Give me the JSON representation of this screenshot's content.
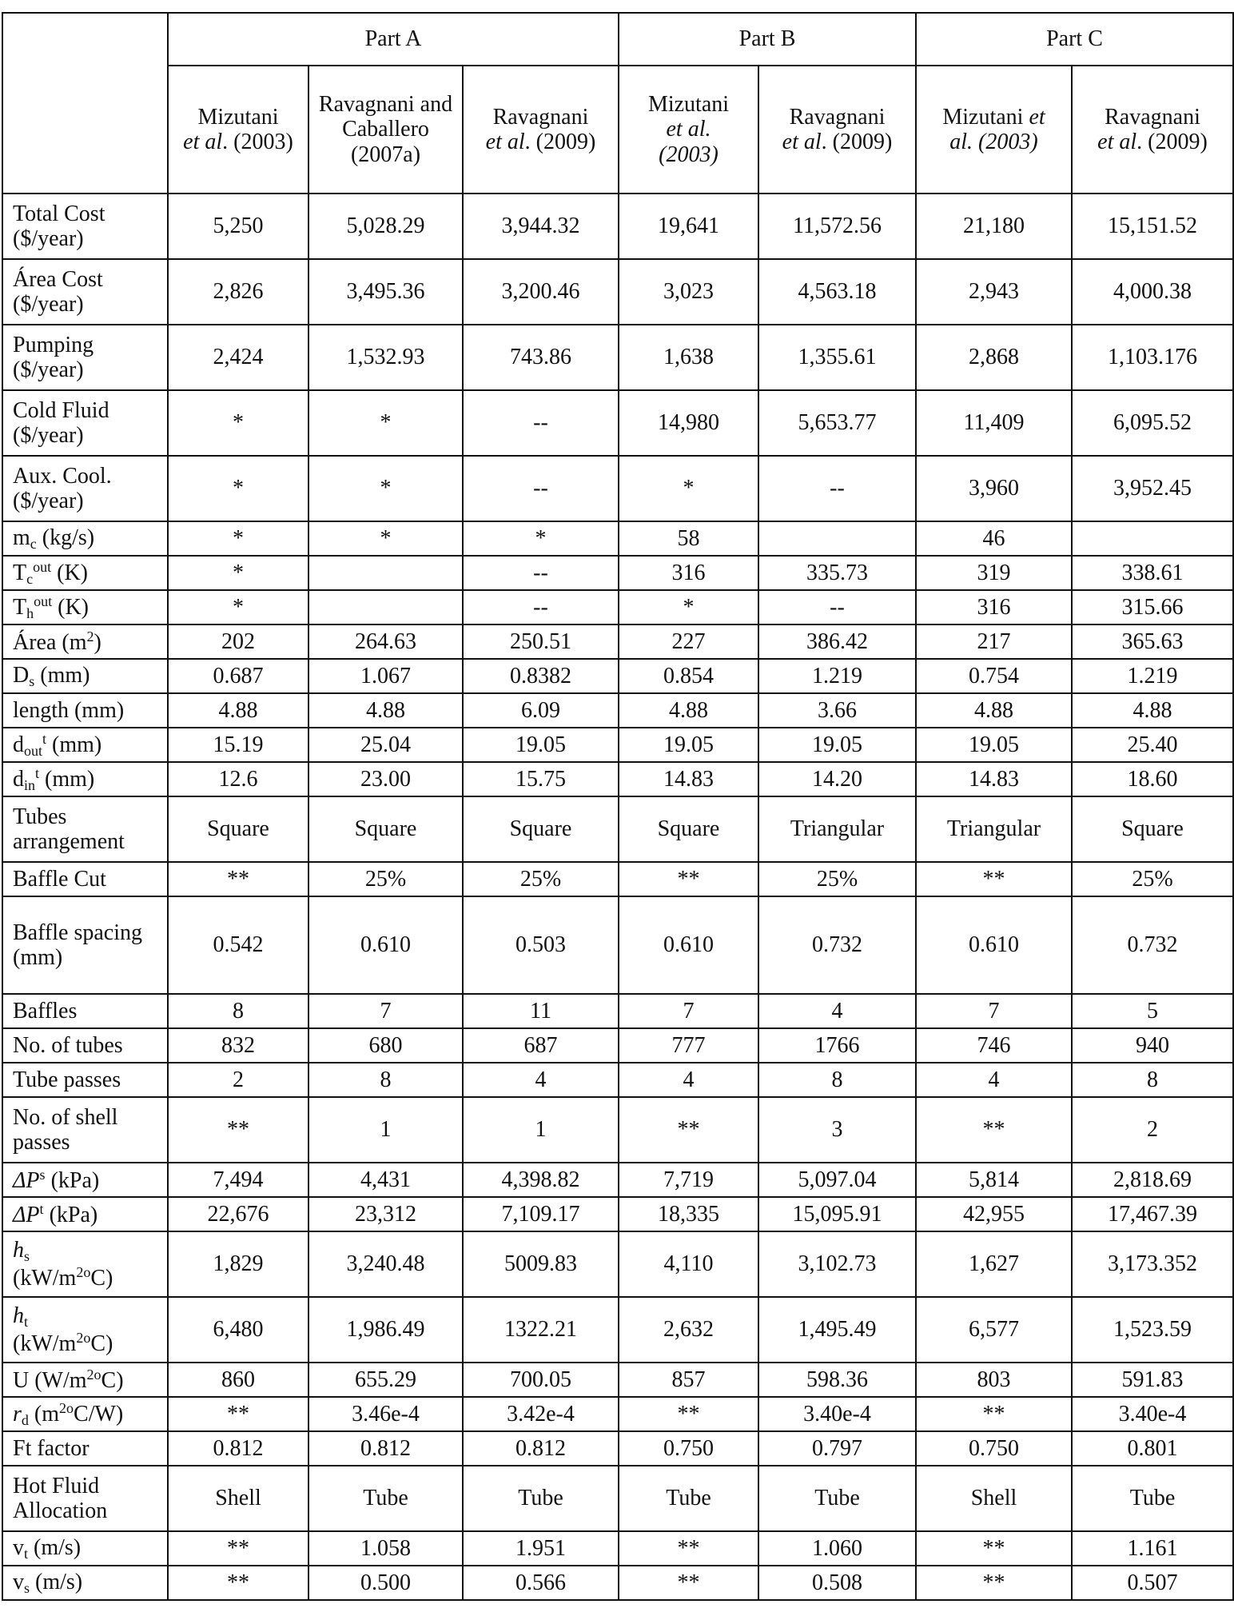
{
  "parts": [
    "Part A",
    "Part B",
    "Part C"
  ],
  "columns": [
    [
      {
        "t": "Mizutani"
      },
      {
        "t": "\n"
      },
      {
        "t": "et al",
        "s": "i"
      },
      {
        "t": ". (2003)"
      }
    ],
    [
      {
        "t": "Ravagnani and Caballero (2007a)"
      }
    ],
    [
      {
        "t": "Ravagnani"
      },
      {
        "t": "\n"
      },
      {
        "t": "et al",
        "s": "i"
      },
      {
        "t": ". (2009)"
      }
    ],
    [
      {
        "t": "Mizutani"
      },
      {
        "t": "\n"
      },
      {
        "t": "et al.",
        "s": "i"
      },
      {
        "t": "\n"
      },
      {
        "t": "(2003)",
        "s": "i"
      }
    ],
    [
      {
        "t": "Ravagnani"
      },
      {
        "t": "\n"
      },
      {
        "t": "et al",
        "s": "i"
      },
      {
        "t": ". (2009)"
      }
    ],
    [
      {
        "t": "Mizutani "
      },
      {
        "t": "et",
        "s": "i"
      },
      {
        "t": "\n"
      },
      {
        "t": "al. (2003)",
        "s": "i"
      }
    ],
    [
      {
        "t": "Ravagnani"
      },
      {
        "t": "\n"
      },
      {
        "t": "et al",
        "s": "i"
      },
      {
        "t": ". (2009)"
      }
    ]
  ],
  "rows": [
    {
      "h": 2,
      "label": [
        {
          "t": "Total Cost ($/year)"
        }
      ],
      "values": [
        "5,250",
        "5,028.29",
        "3,944.32",
        "19,641",
        "11,572.56",
        "21,180",
        "15,151.52"
      ]
    },
    {
      "h": 2,
      "label": [
        {
          "t": "Área Cost ($/year)"
        }
      ],
      "values": [
        "2,826",
        "3,495.36",
        "3,200.46",
        "3,023",
        "4,563.18",
        "2,943",
        "4,000.38"
      ]
    },
    {
      "h": 2,
      "label": [
        {
          "t": "Pumping ($/year)"
        }
      ],
      "values": [
        "2,424",
        "1,532.93",
        "743.86",
        "1,638",
        "1,355.61",
        "2,868",
        "1,103.176"
      ]
    },
    {
      "h": 2,
      "label": [
        {
          "t": "Cold Fluid ($/year)"
        }
      ],
      "values": [
        "*",
        "*",
        "--",
        "14,980",
        "5,653.77",
        "11,409",
        "6,095.52"
      ]
    },
    {
      "h": 2,
      "label": [
        {
          "t": "Aux. Cool. ($/year)"
        }
      ],
      "values": [
        "*",
        "*",
        "--",
        "*",
        "--",
        "3,960",
        "3,952.45"
      ]
    },
    {
      "h": 1,
      "label": [
        {
          "t": "m"
        },
        {
          "t": "c",
          "s": "sub"
        },
        {
          "t": " (kg/s)"
        }
      ],
      "values": [
        "*",
        "*",
        "*",
        "58",
        "",
        "46",
        ""
      ]
    },
    {
      "h": 1,
      "label": [
        {
          "t": "T"
        },
        {
          "t": "c",
          "s": "sub"
        },
        {
          "t": "out",
          "s": "sup"
        },
        {
          "t": " (K)"
        }
      ],
      "values": [
        "*",
        "",
        "--",
        "316",
        "335.73",
        "319",
        "338.61"
      ]
    },
    {
      "h": 1,
      "label": [
        {
          "t": "T"
        },
        {
          "t": "h",
          "s": "sub"
        },
        {
          "t": "out",
          "s": "sup"
        },
        {
          "t": " (K)"
        }
      ],
      "values": [
        "*",
        "",
        "--",
        "*",
        "--",
        "316",
        "315.66"
      ]
    },
    {
      "h": 1,
      "label": [
        {
          "t": "Área (m"
        },
        {
          "t": "2",
          "s": "sup"
        },
        {
          "t": ")"
        }
      ],
      "values": [
        "202",
        "264.63",
        "250.51",
        "227",
        "386.42",
        "217",
        "365.63"
      ]
    },
    {
      "h": 1,
      "label": [
        {
          "t": "D"
        },
        {
          "t": "s",
          "s": "sub"
        },
        {
          "t": " (mm)"
        }
      ],
      "values": [
        "0.687",
        "1.067",
        "0.8382",
        "0.854",
        "1.219",
        "0.754",
        "1.219"
      ]
    },
    {
      "h": 1,
      "label": [
        {
          "t": "length (mm)"
        }
      ],
      "values": [
        "4.88",
        "4.88",
        "6.09",
        "4.88",
        "3.66",
        "4.88",
        "4.88"
      ]
    },
    {
      "h": 1,
      "label": [
        {
          "t": "d"
        },
        {
          "t": "out",
          "s": "sub"
        },
        {
          "t": "t",
          "s": "sup"
        },
        {
          "t": " (mm)"
        }
      ],
      "values": [
        "15.19",
        "25.04",
        "19.05",
        "19.05",
        "19.05",
        "19.05",
        "25.40"
      ]
    },
    {
      "h": 1,
      "label": [
        {
          "t": "d"
        },
        {
          "t": "in",
          "s": "sub"
        },
        {
          "t": "t",
          "s": "sup"
        },
        {
          "t": " (mm)"
        }
      ],
      "values": [
        "12.6",
        "23.00",
        "15.75",
        "14.83",
        "14.20",
        "14.83",
        "18.60"
      ]
    },
    {
      "h": 2,
      "label": [
        {
          "t": "Tubes arrangement"
        }
      ],
      "values": [
        "Square",
        "Square",
        "Square",
        "Square",
        "Triangular",
        "Triangular",
        "Square"
      ]
    },
    {
      "h": 1,
      "label": [
        {
          "t": "Baffle Cut"
        }
      ],
      "values": [
        "**",
        "25%",
        "25%",
        "**",
        "25%",
        "**",
        "25%"
      ]
    },
    {
      "h": 3,
      "label": [
        {
          "t": "Baffle spacing (mm)"
        }
      ],
      "values": [
        "0.542",
        "0.610",
        "0.503",
        "0.610",
        "0.732",
        "0.610",
        "0.732"
      ]
    },
    {
      "h": 1,
      "label": [
        {
          "t": "Baffles"
        }
      ],
      "values": [
        "8",
        "7",
        "11",
        "7",
        "4",
        "7",
        "5"
      ]
    },
    {
      "h": 1,
      "label": [
        {
          "t": "No. of tubes"
        }
      ],
      "values": [
        "832",
        "680",
        "687",
        "777",
        "1766",
        "746",
        "940"
      ]
    },
    {
      "h": 1,
      "label": [
        {
          "t": "Tube passes"
        }
      ],
      "values": [
        "2",
        "8",
        "4",
        "4",
        "8",
        "4",
        "8"
      ]
    },
    {
      "h": 2,
      "label": [
        {
          "t": "No. of shell passes"
        }
      ],
      "values": [
        "**",
        "1",
        "1",
        "**",
        "3",
        "**",
        "2"
      ]
    },
    {
      "h": 1,
      "label": [
        {
          "t": "ΔP",
          "s": "i"
        },
        {
          "t": "s",
          "s": "sup"
        },
        {
          "t": " (kPa)"
        }
      ],
      "values": [
        "7,494",
        "4,431",
        "4,398.82",
        "7,719",
        "5,097.04",
        "5,814",
        "2,818.69"
      ]
    },
    {
      "h": 1,
      "label": [
        {
          "t": "ΔP",
          "s": "i"
        },
        {
          "t": "t",
          "s": "sup"
        },
        {
          "t": " (kPa)"
        }
      ],
      "values": [
        "22,676",
        "23,312",
        "7,109.17",
        "18,335",
        "15,095.91",
        "42,955",
        "17,467.39"
      ]
    },
    {
      "h": 2,
      "label": [
        {
          "t": "h",
          "s": "i"
        },
        {
          "t": "s",
          "s": "sub"
        },
        {
          "t": "\n"
        },
        {
          "t": "(kW/m"
        },
        {
          "t": "2o",
          "s": "sup"
        },
        {
          "t": "C)"
        }
      ],
      "values": [
        "1,829",
        "3,240.48",
        "5009.83",
        "4,110",
        "3,102.73",
        "1,627",
        "3,173.352"
      ]
    },
    {
      "h": 2,
      "label": [
        {
          "t": "h",
          "s": "i"
        },
        {
          "t": "t",
          "s": "sub"
        },
        {
          "t": "\n"
        },
        {
          "t": "(kW/m"
        },
        {
          "t": "2o",
          "s": "sup"
        },
        {
          "t": "C)"
        }
      ],
      "values": [
        "6,480",
        "1,986.49",
        "1322.21",
        "2,632",
        "1,495.49",
        "6,577",
        "1,523.59"
      ]
    },
    {
      "h": 1,
      "label": [
        {
          "t": "U (W/m"
        },
        {
          "t": "2o",
          "s": "sup"
        },
        {
          "t": "C)"
        }
      ],
      "values": [
        "860",
        "655.29",
        "700.05",
        "857",
        "598.36",
        "803",
        "591.83"
      ]
    },
    {
      "h": 1,
      "label": [
        {
          "t": "r",
          "s": "i"
        },
        {
          "t": "d",
          "s": "sub"
        },
        {
          "t": " (m"
        },
        {
          "t": "2o",
          "s": "sup"
        },
        {
          "t": "C/W)"
        }
      ],
      "values": [
        "**",
        "3.46e-4",
        "3.42e-4",
        "**",
        "3.40e-4",
        "**",
        "3.40e-4"
      ]
    },
    {
      "h": 1,
      "label": [
        {
          "t": "Ft factor"
        }
      ],
      "values": [
        "0.812",
        "0.812",
        "0.812",
        "0.750",
        "0.797",
        "0.750",
        "0.801"
      ]
    },
    {
      "h": 2,
      "label": [
        {
          "t": "Hot Fluid Allocation"
        }
      ],
      "values": [
        "Shell",
        "Tube",
        "Tube",
        "Tube",
        "Tube",
        "Shell",
        "Tube"
      ]
    },
    {
      "h": 1,
      "label": [
        {
          "t": "v"
        },
        {
          "t": "t",
          "s": "sub"
        },
        {
          "t": " (m/s)"
        }
      ],
      "values": [
        "**",
        "1.058",
        "1.951",
        "**",
        "1.060",
        "**",
        "1.161"
      ]
    },
    {
      "h": 1,
      "label": [
        {
          "t": "v"
        },
        {
          "t": "s",
          "s": "sub"
        },
        {
          "t": " (m/s)"
        }
      ],
      "values": [
        "**",
        "0.500",
        "0.566",
        "**",
        "0.508",
        "**",
        "0.507"
      ]
    }
  ]
}
